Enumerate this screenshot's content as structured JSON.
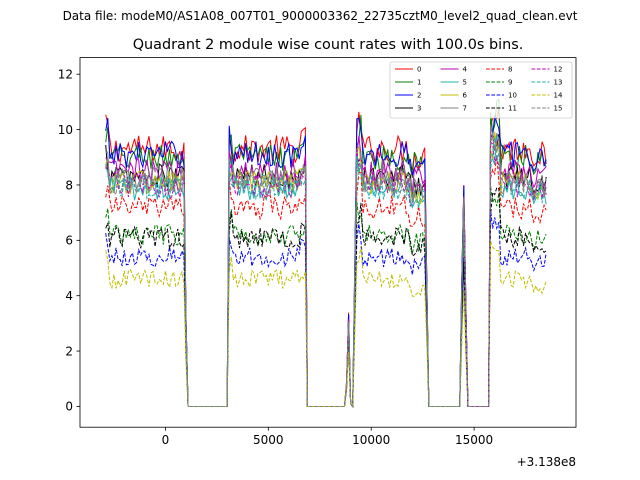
{
  "chart_data": {
    "type": "line",
    "suptitle": "Data file: modeM0/AS1A08_007T01_9000003362_22735cztM0_level2_quad_clean.evt",
    "title": "Quadrant 2 module wise count rates with 100.0s bins.",
    "xlabel": "",
    "ylabel": "",
    "offset_text": "+3.138e8",
    "xlim": [
      -4150,
      19950
    ],
    "ylim": [
      -0.75,
      12.6
    ],
    "xticks": [
      0,
      5000,
      10000,
      15000
    ],
    "xtick_labels": [
      "0",
      "5000",
      "10000",
      "15000"
    ],
    "yticks": [
      0,
      2,
      4,
      6,
      8,
      10,
      12
    ],
    "ytick_labels": [
      "0",
      "2",
      "4",
      "6",
      "8",
      "10",
      "12"
    ],
    "grid": false,
    "legend_position": "top-right",
    "legend_columns": 4,
    "time_profile": {
      "segments": [
        {
          "on": [
            -2900,
            900
          ],
          "peak_start": -2900,
          "peak_end": null
        },
        {
          "fall": [
            900,
            1100
          ]
        },
        {
          "off": [
            1100,
            3100
          ]
        },
        {
          "on": [
            3100,
            6800
          ]
        },
        {
          "fall": [
            6800,
            7000
          ]
        },
        {
          "off": [
            7000,
            8600
          ]
        },
        {
          "blip": [
            8800,
            9200
          ],
          "peak_at": 8950
        },
        {
          "on": [
            9400,
            12600
          ]
        },
        {
          "fall": [
            12600,
            12900
          ]
        },
        {
          "off": [
            12900,
            14400
          ]
        },
        {
          "blip": [
            14300,
            14900
          ],
          "peak_at": 14500
        },
        {
          "off": [
            14900,
            15700
          ]
        },
        {
          "on": [
            15800,
            18500
          ]
        }
      ]
    },
    "series": [
      {
        "name": "0",
        "color": "#ff0000",
        "style": "solid",
        "level": 9.3
      },
      {
        "name": "1",
        "color": "#008000",
        "style": "solid",
        "level": 9.0
      },
      {
        "name": "2",
        "color": "#0000ff",
        "style": "solid",
        "level": 9.1
      },
      {
        "name": "3",
        "color": "#000000",
        "style": "solid",
        "level": 8.3
      },
      {
        "name": "4",
        "color": "#bf00bf",
        "style": "solid",
        "level": 8.5
      },
      {
        "name": "5",
        "color": "#20b2aa",
        "style": "solid",
        "level": 7.9
      },
      {
        "name": "6",
        "color": "#bfbf00",
        "style": "solid",
        "level": 8.1
      },
      {
        "name": "7",
        "color": "#808080",
        "style": "solid",
        "level": 8.2
      },
      {
        "name": "8",
        "color": "#ff0000",
        "style": "dashed",
        "level": 7.2
      },
      {
        "name": "9",
        "color": "#008000",
        "style": "dashed",
        "level": 6.2
      },
      {
        "name": "10",
        "color": "#0000ff",
        "style": "dashed",
        "level": 5.4
      },
      {
        "name": "11",
        "color": "#000000",
        "style": "dashed",
        "level": 6.1
      },
      {
        "name": "12",
        "color": "#bf00bf",
        "style": "dashed",
        "level": 8.0
      },
      {
        "name": "13",
        "color": "#20b2aa",
        "style": "dashed",
        "level": 7.9
      },
      {
        "name": "14",
        "color": "#bfbf00",
        "style": "dashed",
        "level": 4.6
      },
      {
        "name": "15",
        "color": "#808080",
        "style": "dashed",
        "level": 8.1
      }
    ]
  }
}
